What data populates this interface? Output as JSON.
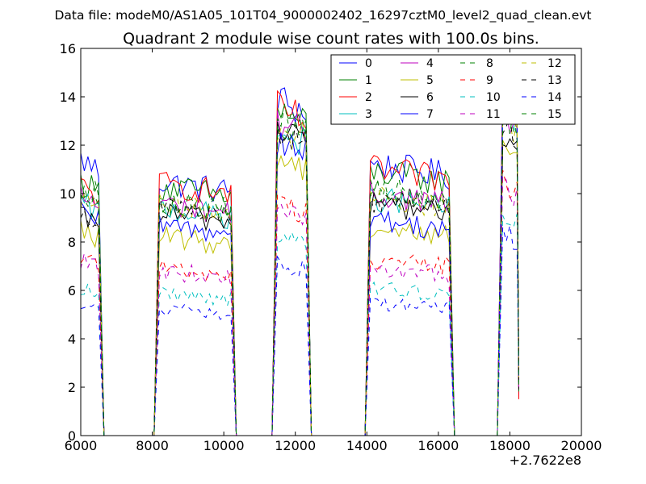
{
  "chart_data": {
    "type": "line",
    "suptitle": "Data file: modeM0/AS1A05_101T04_9000002402_16297cztM0_level2_quad_clean.evt",
    "title": "Quadrant 2 module wise count rates with 100.0s bins.",
    "xlabel": "",
    "ylabel": "",
    "x_offset_label": "+2.7622e8",
    "xlim": [
      6000,
      20000
    ],
    "ylim": [
      0,
      16
    ],
    "xticks": [
      6000,
      8000,
      10000,
      12000,
      14000,
      16000,
      18000,
      20000
    ],
    "yticks": [
      0,
      2,
      4,
      6,
      8,
      10,
      12,
      14,
      16
    ],
    "legend_position": "upper-right",
    "segments": [
      {
        "start": 6000,
        "end": 6500
      },
      {
        "start": 8200,
        "end": 10200
      },
      {
        "start": 11500,
        "end": 12300
      },
      {
        "start": 14100,
        "end": 16300
      },
      {
        "start": 17800,
        "end": 18200
      }
    ],
    "series": [
      {
        "name": "0",
        "color": "#0000ff",
        "dash": "solid",
        "levels": [
          11.4,
          10.5,
          13.9,
          11.2,
          14.4
        ]
      },
      {
        "name": "1",
        "color": "#008000",
        "dash": "solid",
        "levels": [
          10.5,
          10.3,
          13.4,
          10.9,
          14.0
        ]
      },
      {
        "name": "2",
        "color": "#ff0000",
        "dash": "solid",
        "levels": [
          10.3,
          10.4,
          13.5,
          11.0,
          14.1
        ]
      },
      {
        "name": "3",
        "color": "#00bfbf",
        "dash": "solid",
        "levels": [
          9.6,
          9.4,
          12.5,
          9.8,
          13.2
        ]
      },
      {
        "name": "4",
        "color": "#bf00bf",
        "dash": "solid",
        "levels": [
          9.9,
          9.6,
          13.0,
          10.0,
          13.4
        ]
      },
      {
        "name": "5",
        "color": "#bfbf00",
        "dash": "solid",
        "levels": [
          8.5,
          8.2,
          11.5,
          8.6,
          12.2
        ]
      },
      {
        "name": "6",
        "color": "#000000",
        "dash": "solid",
        "levels": [
          9.0,
          9.2,
          12.8,
          9.6,
          12.6
        ]
      },
      {
        "name": "7",
        "color": "#0000ff",
        "dash": "solid",
        "levels": [
          9.2,
          8.7,
          12.3,
          8.9,
          13.6
        ]
      },
      {
        "name": "8",
        "color": "#008000",
        "dash": "dashed",
        "levels": [
          10.3,
          9.7,
          13.2,
          10.2,
          13.3
        ]
      },
      {
        "name": "9",
        "color": "#ff0000",
        "dash": "dashed",
        "levels": [
          7.5,
          6.9,
          9.6,
          7.3,
          10.6
        ]
      },
      {
        "name": "10",
        "color": "#00bfbf",
        "dash": "dashed",
        "levels": [
          6.1,
          5.9,
          8.2,
          6.1,
          9.2
        ]
      },
      {
        "name": "11",
        "color": "#bf00bf",
        "dash": "dashed",
        "levels": [
          7.2,
          6.8,
          9.2,
          6.9,
          10.2
        ]
      },
      {
        "name": "12",
        "color": "#bfbf00",
        "dash": "dashed",
        "levels": [
          9.8,
          9.5,
          12.8,
          9.9,
          13.1
        ]
      },
      {
        "name": "13",
        "color": "#000000",
        "dash": "dashed",
        "levels": [
          9.3,
          9.4,
          12.7,
          9.7,
          13.0
        ]
      },
      {
        "name": "14",
        "color": "#0000ff",
        "dash": "dashed",
        "levels": [
          5.4,
          5.2,
          7.1,
          5.5,
          8.4
        ]
      },
      {
        "name": "15",
        "color": "#008000",
        "dash": "dashed",
        "levels": [
          10.2,
          9.6,
          13.0,
          10.1,
          13.2
        ]
      }
    ]
  }
}
